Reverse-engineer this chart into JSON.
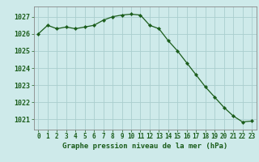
{
  "hours": [
    0,
    1,
    2,
    3,
    4,
    5,
    6,
    7,
    8,
    9,
    10,
    11,
    12,
    13,
    14,
    15,
    16,
    17,
    18,
    19,
    20,
    21,
    22,
    23
  ],
  "pressure": [
    1026.0,
    1026.5,
    1026.3,
    1026.4,
    1026.3,
    1026.4,
    1026.5,
    1026.8,
    1027.0,
    1027.1,
    1027.15,
    1027.1,
    1026.5,
    1026.3,
    1025.6,
    1025.0,
    1024.3,
    1023.6,
    1022.9,
    1022.3,
    1021.7,
    1021.2,
    1020.85,
    1020.9
  ],
  "ylim_min": 1020.4,
  "ylim_max": 1027.6,
  "yticks": [
    1021,
    1022,
    1023,
    1024,
    1025,
    1026,
    1027
  ],
  "line_color": "#1a5c1a",
  "marker_color": "#1a5c1a",
  "bg_color": "#ceeaea",
  "grid_color": "#aacece",
  "plot_bg": "#ceeaea",
  "xlabel": "Graphe pression niveau de la mer (hPa)",
  "xlabel_color": "#1a5c1a",
  "tick_color": "#1a5c1a",
  "border_color": "#888888",
  "tick_fontsize": 5.5,
  "ytick_fontsize": 6.0,
  "xlabel_fontsize": 6.5
}
